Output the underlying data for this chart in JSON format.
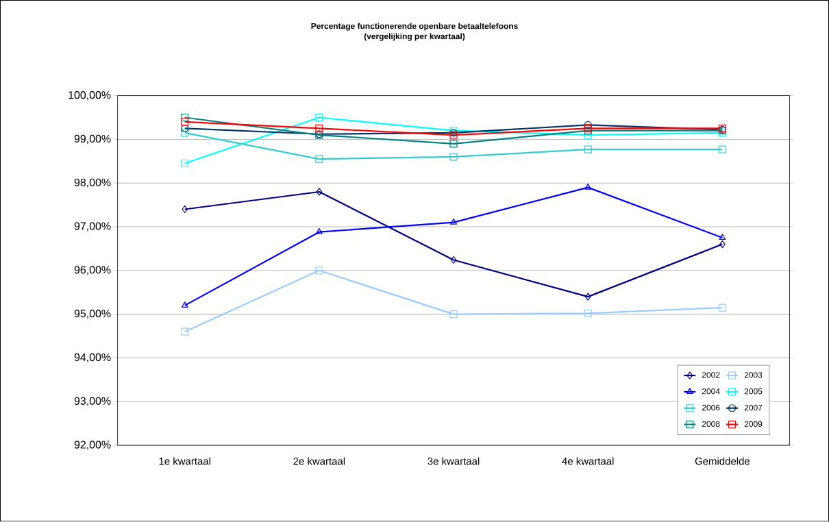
{
  "chart_data": {
    "type": "line",
    "title": "Percentage functionerende openbare betaaltelefoons",
    "subtitle": "(vergelijking per kwartaal)",
    "categories": [
      "1e kwartaal",
      "2e kwartaal",
      "3e kwartaal",
      "4e kwartaal",
      "Gemiddelde"
    ],
    "ylim": [
      92,
      100
    ],
    "yticks": [
      {
        "value": 92,
        "label": "92,00%"
      },
      {
        "value": 93,
        "label": "93,00%"
      },
      {
        "value": 94,
        "label": "94,00%"
      },
      {
        "value": 95,
        "label": "95,00%"
      },
      {
        "value": 96,
        "label": "96,00%"
      },
      {
        "value": 97,
        "label": "97,00%"
      },
      {
        "value": 98,
        "label": "98,00%"
      },
      {
        "value": 99,
        "label": "99,00%"
      },
      {
        "value": 100,
        "label": "100,00%"
      }
    ],
    "grid": "y",
    "legend": "bottom right",
    "series": [
      {
        "name": "2002",
        "color": "#000080",
        "marker": "diamond",
        "values": [
          97.4,
          97.8,
          96.24,
          95.4,
          96.6
        ]
      },
      {
        "name": "2003",
        "color": "#99ccff",
        "marker": "square",
        "values": [
          94.6,
          96.0,
          95.0,
          95.02,
          95.15
        ]
      },
      {
        "name": "2004",
        "color": "#0000ff",
        "marker": "triangle",
        "values": [
          95.2,
          96.88,
          97.1,
          97.9,
          96.75
        ]
      },
      {
        "name": "2005",
        "color": "#00ffff",
        "marker": "square",
        "values": [
          98.45,
          99.5,
          99.2,
          99.1,
          99.15
        ]
      },
      {
        "name": "2006",
        "color": "#33cccc",
        "marker": "square",
        "values": [
          99.15,
          98.55,
          98.6,
          98.77,
          98.77
        ]
      },
      {
        "name": "2007",
        "color": "#003366",
        "marker": "circle",
        "values": [
          99.25,
          99.12,
          99.15,
          99.33,
          99.22
        ]
      },
      {
        "name": "2008",
        "color": "#008080",
        "marker": "square",
        "values": [
          99.5,
          99.1,
          98.9,
          99.2,
          99.2
        ]
      },
      {
        "name": "2009",
        "color": "#ff0000",
        "marker": "square",
        "values": [
          99.4,
          99.25,
          99.1,
          99.25,
          99.25
        ]
      }
    ]
  }
}
